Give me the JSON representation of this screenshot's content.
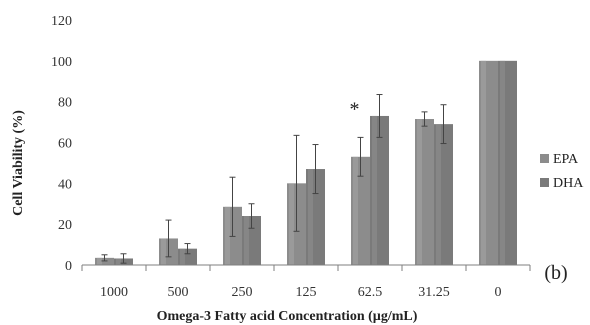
{
  "chart_data": {
    "type": "bar",
    "categories": [
      "1000",
      "500",
      "250",
      "125",
      "62.5",
      "31.25",
      "0"
    ],
    "series": [
      {
        "name": "EPA",
        "values": [
          3.5,
          13,
          28.5,
          40,
          53,
          71.5,
          100
        ],
        "errors": [
          1.5,
          9,
          14.5,
          23.5,
          9.5,
          3.5,
          0
        ],
        "color": "#8c8c8c"
      },
      {
        "name": "DHA",
        "values": [
          3.2,
          8,
          24,
          47,
          73,
          69,
          100
        ],
        "errors": [
          2.3,
          2.5,
          6,
          12,
          10.5,
          9.5,
          0
        ],
        "color": "#7a7a7a"
      }
    ],
    "xlabel": "Omega-3 Fatty acid Concentration (µg/mL)",
    "ylabel": "Cell Viability (%)",
    "ylim": [
      0,
      120
    ],
    "yticks": [
      "0",
      "20",
      "40",
      "60",
      "80",
      "100",
      "120"
    ],
    "grid": false,
    "legend_position": "right",
    "annotations": [
      {
        "text": "*",
        "category": "62.5"
      }
    ],
    "panel_label": "(b)"
  }
}
